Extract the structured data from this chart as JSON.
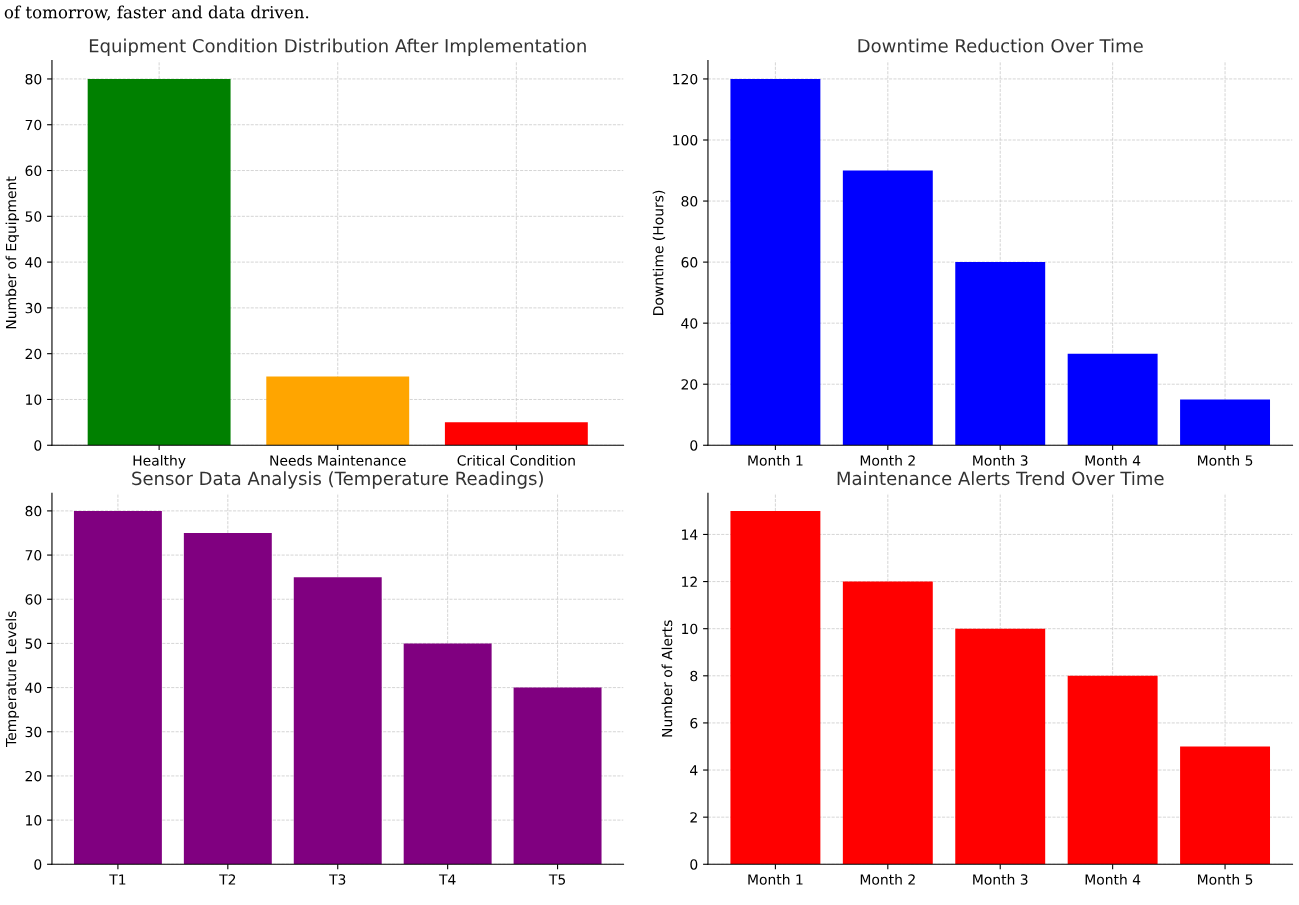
{
  "chart_data": [
    {
      "type": "bar",
      "title": "Equipment Condition Distribution After Implementation",
      "ylabel": "Number of Equipment",
      "categories": [
        "Healthy",
        "Needs Maintenance",
        "Critical Condition"
      ],
      "values": [
        80,
        15,
        5
      ],
      "colors": [
        "#008000",
        "#ffa500",
        "#ff0000"
      ],
      "ylim": [
        0,
        84
      ],
      "yticks": [
        0,
        10,
        20,
        30,
        40,
        50,
        60,
        70,
        80
      ],
      "grid": true,
      "annotations": [
        "of tomorrow, faster and data driven."
      ]
    },
    {
      "type": "bar",
      "title": "Downtime Reduction Over Time",
      "ylabel": "Downtime (Hours)",
      "categories": [
        "Month 1",
        "Month 2",
        "Month 3",
        "Month 4",
        "Month 5"
      ],
      "values": [
        120,
        90,
        60,
        30,
        15
      ],
      "color": "#0000ff",
      "ylim": [
        0,
        126
      ],
      "yticks": [
        0,
        20,
        40,
        60,
        80,
        100,
        120
      ],
      "grid": true
    },
    {
      "type": "bar",
      "title": "Sensor Data Analysis (Temperature Readings)",
      "ylabel": "Temperature Levels",
      "categories": [
        "T1",
        "T2",
        "T3",
        "T4",
        "T5"
      ],
      "values": [
        80,
        75,
        65,
        50,
        40
      ],
      "color": "#800080",
      "ylim": [
        0,
        84
      ],
      "yticks": [
        0,
        10,
        20,
        30,
        40,
        50,
        60,
        70,
        80
      ],
      "grid": true
    },
    {
      "type": "bar",
      "title": "Maintenance Alerts Trend Over Time",
      "ylabel": "Number of Alerts",
      "categories": [
        "Month 1",
        "Month 2",
        "Month 3",
        "Month 4",
        "Month 5"
      ],
      "values": [
        15,
        12,
        10,
        8,
        5
      ],
      "color": "#ff0000",
      "ylim": [
        0,
        15.75
      ],
      "yticks": [
        0,
        2,
        4,
        6,
        8,
        10,
        12,
        14
      ],
      "grid": true
    }
  ]
}
